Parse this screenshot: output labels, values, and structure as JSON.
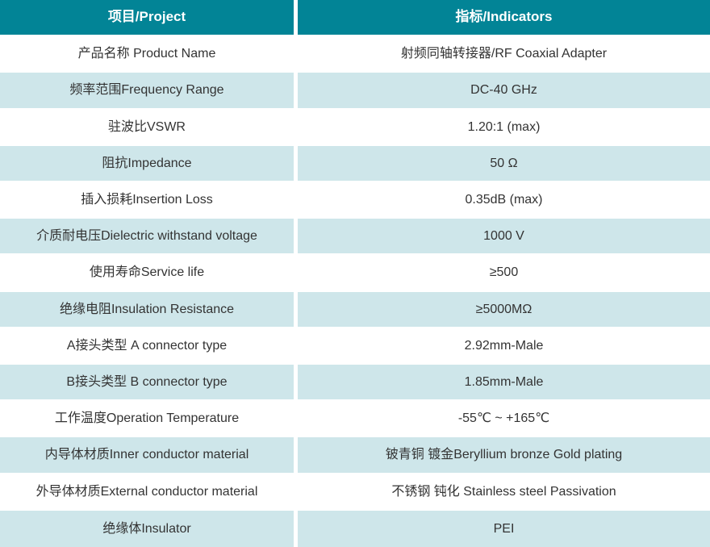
{
  "colors": {
    "header_bg": "#028496",
    "header_text": "#ffffff",
    "row_alt_bg": "#cee6ea",
    "row_bg": "#ffffff",
    "body_text": "#333333"
  },
  "table": {
    "header": {
      "project": "项目/Project",
      "indicators": "指标/Indicators"
    },
    "rows": [
      {
        "project": "产品名称 Product Name",
        "indicator": "射频同轴转接器/RF Coaxial Adapter"
      },
      {
        "project": "频率范围Frequency Range",
        "indicator": "DC-40 GHz"
      },
      {
        "project": "驻波比VSWR",
        "indicator": "1.20:1 (max)"
      },
      {
        "project": "阻抗Impedance",
        "indicator": "50 Ω"
      },
      {
        "project": "插入损耗Insertion Loss",
        "indicator": "0.35dB (max)"
      },
      {
        "project": "介质耐电压Dielectric withstand voltage",
        "indicator": "1000 V"
      },
      {
        "project": "使用寿命Service life",
        "indicator": "≥500"
      },
      {
        "project": "绝缘电阻Insulation Resistance",
        "indicator": "≥5000MΩ"
      },
      {
        "project": "A接头类型 A connector type",
        "indicator": "2.92mm-Male"
      },
      {
        "project": "B接头类型 B connector type",
        "indicator": "1.85mm-Male"
      },
      {
        "project": "工作温度Operation Temperature",
        "indicator": "-55℃ ~ +165℃"
      },
      {
        "project": "内导体材质Inner conductor material",
        "indicator": "铍青铜 镀金Beryllium bronze Gold plating"
      },
      {
        "project": "外导体材质External conductor material",
        "indicator": "不锈钢 钝化 Stainless steel Passivation"
      },
      {
        "project": "绝缘体Insulator",
        "indicator": "PEI"
      }
    ]
  }
}
